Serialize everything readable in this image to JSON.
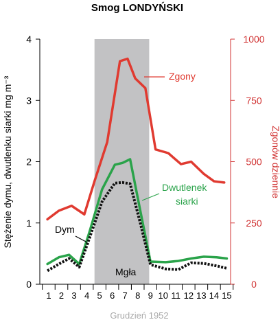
{
  "chart_data": {
    "type": "line",
    "title": "Smog LONDYŃSKI",
    "xlabel": "Grudzień 1952",
    "ylabel_left": "Stężenie dymu, dwutlenku siarki mg m⁻³",
    "ylabel_right": "Zgonów dziennie",
    "x": [
      1,
      2,
      3,
      4,
      5,
      6,
      7,
      8,
      9,
      10,
      11,
      12,
      13,
      14,
      15
    ],
    "x_ticks": [
      "1",
      "2",
      "3",
      "4",
      "5",
      "6",
      "7",
      "8",
      "9",
      "10",
      "11",
      "12",
      "13",
      "14",
      "15"
    ],
    "ylim_left": [
      0,
      4
    ],
    "ylim_right": [
      0,
      1000
    ],
    "yticks_left": [
      "0",
      "1",
      "2",
      "3",
      "4"
    ],
    "yticks_right": [
      "0",
      "250",
      "500",
      "750",
      "1000"
    ],
    "shaded_region": {
      "label": "Mgła",
      "x_start": 4.6,
      "x_end": 8.9
    },
    "grid": false,
    "series": [
      {
        "name": "Zgony",
        "axis": "right",
        "color": "#e03a30",
        "style": "solid",
        "x": [
          0.9,
          1.8,
          2.8,
          3.8,
          4.6,
          5.6,
          6.6,
          7.2,
          7.8,
          8.6,
          9.4,
          10.4,
          11.4,
          12.2,
          13.2,
          14.0,
          14.8
        ],
        "values": [
          265,
          300,
          320,
          285,
          420,
          580,
          910,
          920,
          840,
          800,
          550,
          535,
          490,
          500,
          450,
          420,
          415
        ]
      },
      {
        "name": "Dwutlenek siarki",
        "axis": "left",
        "color": "#2aa34a",
        "style": "solid",
        "x": [
          0.9,
          1.8,
          2.6,
          3.4,
          4.2,
          5.2,
          6.2,
          6.8,
          7.4,
          8.2,
          9.0,
          10.2,
          11.2,
          12.2,
          13.2,
          14.2,
          15.0
        ],
        "values": [
          0.33,
          0.44,
          0.48,
          0.33,
          0.85,
          1.55,
          1.95,
          1.98,
          2.04,
          1.2,
          0.37,
          0.36,
          0.38,
          0.42,
          0.45,
          0.44,
          0.42
        ]
      },
      {
        "name": "Dym",
        "axis": "left",
        "color": "#111111",
        "style": "dotted",
        "x": [
          0.9,
          1.8,
          2.6,
          3.4,
          4.2,
          5.2,
          6.2,
          6.8,
          7.4,
          8.2,
          9.0,
          10.2,
          11.2,
          12.2,
          13.2,
          14.2,
          15.0
        ],
        "values": [
          0.22,
          0.33,
          0.42,
          0.28,
          0.75,
          1.35,
          1.65,
          1.66,
          1.64,
          1.0,
          0.32,
          0.25,
          0.24,
          0.35,
          0.34,
          0.3,
          0.26
        ]
      }
    ],
    "labels": {
      "Zgony": "Zgony",
      "Dwutlenek1": "Dwutlenek",
      "Dwutlenek2": "siarki",
      "Dym": "Dym",
      "Mgla": "Mgła"
    }
  }
}
